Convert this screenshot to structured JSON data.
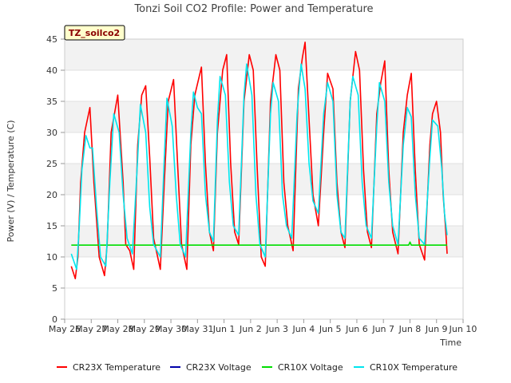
{
  "chart_data": {
    "type": "line",
    "title": "Tonzi Soil CO2 Profile: Power and Temperature",
    "xlabel": "Time",
    "ylabel": "Power (V) / Temperature (C)",
    "site_label": "TZ_soilco2",
    "xlim": [
      0,
      15
    ],
    "ylim": [
      0,
      45
    ],
    "yticks": [
      0,
      5,
      10,
      15,
      20,
      25,
      30,
      35,
      40,
      45
    ],
    "xticks": [
      {
        "v": 0,
        "label": "May 26"
      },
      {
        "v": 1,
        "label": "May 27"
      },
      {
        "v": 2,
        "label": "May 28"
      },
      {
        "v": 3,
        "label": "May 29"
      },
      {
        "v": 4,
        "label": "May 30"
      },
      {
        "v": 5,
        "label": "May 31"
      },
      {
        "v": 6,
        "label": "Jun 1"
      },
      {
        "v": 7,
        "label": "Jun 2"
      },
      {
        "v": 8,
        "label": "Jun 3"
      },
      {
        "v": 9,
        "label": "Jun 4"
      },
      {
        "v": 10,
        "label": "Jun 5"
      },
      {
        "v": 11,
        "label": "Jun 6"
      },
      {
        "v": 12,
        "label": "Jun 7"
      },
      {
        "v": 13,
        "label": "Jun 8"
      },
      {
        "v": 14,
        "label": "Jun 9"
      },
      {
        "v": 15,
        "label": "Jun 10"
      }
    ],
    "grid": "horizontal bands",
    "legend_position": "bottom",
    "series": [
      {
        "name": "CR23X Temperature",
        "color": "#ff0000",
        "points": [
          [
            0.25,
            8.5
          ],
          [
            0.4,
            6.5
          ],
          [
            0.5,
            10
          ],
          [
            0.6,
            22
          ],
          [
            0.75,
            30
          ],
          [
            0.95,
            34
          ],
          [
            1.1,
            22
          ],
          [
            1.3,
            10
          ],
          [
            1.5,
            7
          ],
          [
            1.6,
            12
          ],
          [
            1.75,
            30
          ],
          [
            2.0,
            36
          ],
          [
            2.2,
            22
          ],
          [
            2.3,
            12
          ],
          [
            2.45,
            11
          ],
          [
            2.6,
            8
          ],
          [
            2.75,
            28
          ],
          [
            2.9,
            36
          ],
          [
            3.05,
            37.5
          ],
          [
            3.2,
            26
          ],
          [
            3.35,
            13
          ],
          [
            3.6,
            8
          ],
          [
            3.75,
            22
          ],
          [
            3.9,
            35
          ],
          [
            4.1,
            38.5
          ],
          [
            4.25,
            25
          ],
          [
            4.4,
            12
          ],
          [
            4.6,
            8
          ],
          [
            4.75,
            28
          ],
          [
            4.9,
            36
          ],
          [
            5.15,
            40.5
          ],
          [
            5.3,
            25
          ],
          [
            5.45,
            14
          ],
          [
            5.6,
            11
          ],
          [
            5.75,
            30
          ],
          [
            5.95,
            40
          ],
          [
            6.1,
            42.5
          ],
          [
            6.25,
            25
          ],
          [
            6.4,
            14
          ],
          [
            6.55,
            12
          ],
          [
            6.75,
            35
          ],
          [
            6.95,
            42.5
          ],
          [
            7.1,
            40
          ],
          [
            7.25,
            24
          ],
          [
            7.4,
            10
          ],
          [
            7.55,
            8.5
          ],
          [
            7.75,
            35
          ],
          [
            7.95,
            42.5
          ],
          [
            8.1,
            40
          ],
          [
            8.25,
            22
          ],
          [
            8.4,
            15
          ],
          [
            8.6,
            11
          ],
          [
            8.8,
            37
          ],
          [
            8.95,
            42
          ],
          [
            9.05,
            44.5
          ],
          [
            9.2,
            32
          ],
          [
            9.35,
            20
          ],
          [
            9.55,
            15
          ],
          [
            9.75,
            30
          ],
          [
            9.9,
            39.5
          ],
          [
            10.1,
            37
          ],
          [
            10.25,
            22
          ],
          [
            10.4,
            14
          ],
          [
            10.55,
            11.5
          ],
          [
            10.75,
            35
          ],
          [
            10.95,
            43
          ],
          [
            11.1,
            40
          ],
          [
            11.25,
            24
          ],
          [
            11.4,
            14
          ],
          [
            11.55,
            11.5
          ],
          [
            11.75,
            33
          ],
          [
            11.9,
            38
          ],
          [
            12.05,
            41.5
          ],
          [
            12.2,
            24
          ],
          [
            12.35,
            14
          ],
          [
            12.55,
            10.5
          ],
          [
            12.75,
            30
          ],
          [
            12.9,
            36
          ],
          [
            13.05,
            39.5
          ],
          [
            13.2,
            24
          ],
          [
            13.35,
            12
          ],
          [
            13.55,
            9.5
          ],
          [
            13.75,
            28
          ],
          [
            13.85,
            33
          ],
          [
            14.0,
            35
          ],
          [
            14.15,
            30
          ],
          [
            14.25,
            20
          ],
          [
            14.35,
            14
          ],
          [
            14.4,
            10.5
          ]
        ]
      },
      {
        "name": "CR23X Voltage",
        "color": "#0000aa",
        "points": []
      },
      {
        "name": "CR10X Voltage",
        "color": "#00dd00",
        "points": [
          [
            0.25,
            11.9
          ],
          [
            12.95,
            11.9
          ],
          [
            13.0,
            12.4
          ],
          [
            13.05,
            11.9
          ],
          [
            14.4,
            11.9
          ]
        ]
      },
      {
        "name": "CR10X Temperature",
        "color": "#00e5ee",
        "points": [
          [
            0.25,
            10.5
          ],
          [
            0.45,
            8
          ],
          [
            0.55,
            15
          ],
          [
            0.65,
            24
          ],
          [
            0.8,
            29.5
          ],
          [
            0.95,
            27.5
          ],
          [
            1.05,
            27.5
          ],
          [
            1.2,
            18
          ],
          [
            1.35,
            10
          ],
          [
            1.55,
            8.5
          ],
          [
            1.7,
            22
          ],
          [
            1.85,
            33
          ],
          [
            2.05,
            30
          ],
          [
            2.2,
            20
          ],
          [
            2.35,
            13
          ],
          [
            2.55,
            10.5
          ],
          [
            2.75,
            26
          ],
          [
            2.85,
            34.5
          ],
          [
            3.05,
            30
          ],
          [
            3.2,
            18
          ],
          [
            3.35,
            12
          ],
          [
            3.6,
            10
          ],
          [
            3.75,
            26
          ],
          [
            3.85,
            35.5
          ],
          [
            4.05,
            31
          ],
          [
            4.2,
            20
          ],
          [
            4.35,
            12
          ],
          [
            4.55,
            10
          ],
          [
            4.75,
            30
          ],
          [
            4.85,
            36.5
          ],
          [
            5.0,
            34
          ],
          [
            5.15,
            33
          ],
          [
            5.3,
            20
          ],
          [
            5.45,
            14
          ],
          [
            5.6,
            12.5
          ],
          [
            5.75,
            32
          ],
          [
            5.85,
            39
          ],
          [
            6.05,
            36
          ],
          [
            6.2,
            22
          ],
          [
            6.35,
            15
          ],
          [
            6.55,
            13.5
          ],
          [
            6.75,
            36
          ],
          [
            6.85,
            41
          ],
          [
            7.05,
            36
          ],
          [
            7.2,
            20
          ],
          [
            7.35,
            12
          ],
          [
            7.55,
            10
          ],
          [
            7.75,
            33
          ],
          [
            7.85,
            38
          ],
          [
            8.05,
            35
          ],
          [
            8.2,
            20
          ],
          [
            8.35,
            15
          ],
          [
            8.55,
            13
          ],
          [
            8.75,
            33
          ],
          [
            8.9,
            41
          ],
          [
            9.05,
            37
          ],
          [
            9.2,
            25
          ],
          [
            9.35,
            19
          ],
          [
            9.55,
            17
          ],
          [
            9.75,
            33
          ],
          [
            9.9,
            38
          ],
          [
            10.1,
            35
          ],
          [
            10.25,
            20
          ],
          [
            10.4,
            14
          ],
          [
            10.55,
            13
          ],
          [
            10.75,
            35
          ],
          [
            10.85,
            39
          ],
          [
            11.05,
            36
          ],
          [
            11.2,
            22
          ],
          [
            11.35,
            15
          ],
          [
            11.55,
            13
          ],
          [
            11.75,
            31
          ],
          [
            11.85,
            38
          ],
          [
            12.05,
            35
          ],
          [
            12.2,
            22
          ],
          [
            12.35,
            15
          ],
          [
            12.55,
            12
          ],
          [
            12.75,
            28
          ],
          [
            12.9,
            34
          ],
          [
            13.05,
            32.5
          ],
          [
            13.2,
            20
          ],
          [
            13.35,
            13
          ],
          [
            13.55,
            12
          ],
          [
            13.75,
            26
          ],
          [
            13.85,
            32
          ],
          [
            14.05,
            31
          ],
          [
            14.2,
            24
          ],
          [
            14.3,
            17
          ],
          [
            14.4,
            13.5
          ]
        ]
      }
    ]
  }
}
